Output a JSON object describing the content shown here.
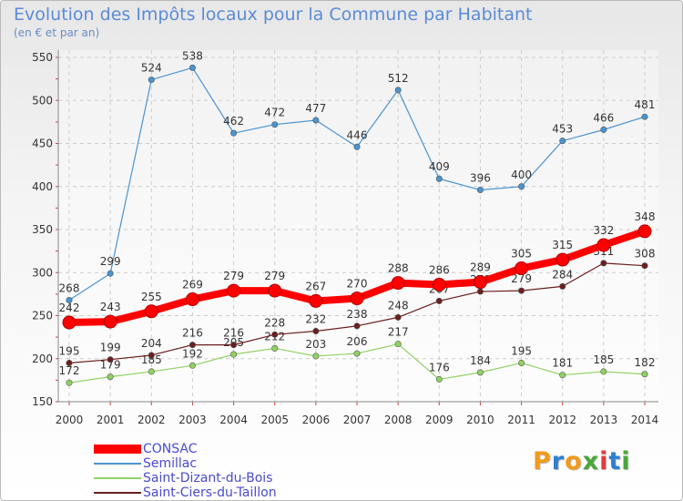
{
  "header": {
    "title": "Evolution des Impôts locaux pour la Commune par Habitant",
    "subtitle": "(en € et par an)"
  },
  "logo": {
    "text": "Proxiti",
    "letters": [
      "P",
      "r",
      "o",
      "x",
      "i",
      "t",
      "i"
    ],
    "colors": [
      "#f19a1b",
      "#2f7fd1",
      "#f19a1b",
      "#4aa63b",
      "#e23b3b",
      "#2f7fd1",
      "#4aa63b"
    ]
  },
  "chart_data": {
    "type": "line",
    "x": [
      "2000",
      "2001",
      "2002",
      "2003",
      "2004",
      "2005",
      "2006",
      "2007",
      "2008",
      "2009",
      "2010",
      "2011",
      "2012",
      "2013",
      "2014"
    ],
    "ylim": [
      150,
      550
    ],
    "yticks": [
      150,
      200,
      250,
      300,
      350,
      400,
      450,
      500,
      550
    ],
    "grid": true,
    "legend_position": "bottom-left",
    "series": [
      {
        "name": "CONSAC",
        "color": "#ff0000",
        "values": [
          242,
          243,
          255,
          269,
          279,
          279,
          267,
          270,
          288,
          286,
          289,
          305,
          315,
          332,
          348
        ]
      },
      {
        "name": "Semillac",
        "color": "#4a94d0",
        "values": [
          268,
          299,
          524,
          538,
          462,
          472,
          477,
          446,
          512,
          409,
          396,
          400,
          453,
          466,
          481
        ]
      },
      {
        "name": "Saint-Dizant-du-Bois",
        "color": "#8fd262",
        "values": [
          172,
          179,
          185,
          192,
          205,
          212,
          203,
          206,
          217,
          176,
          184,
          195,
          181,
          185,
          182
        ]
      },
      {
        "name": "Saint-Ciers-du-Taillon",
        "color": "#6b1f1f",
        "values": [
          195,
          199,
          204,
          216,
          216,
          228,
          232,
          238,
          248,
          267,
          278,
          279,
          284,
          311,
          308
        ]
      }
    ]
  }
}
